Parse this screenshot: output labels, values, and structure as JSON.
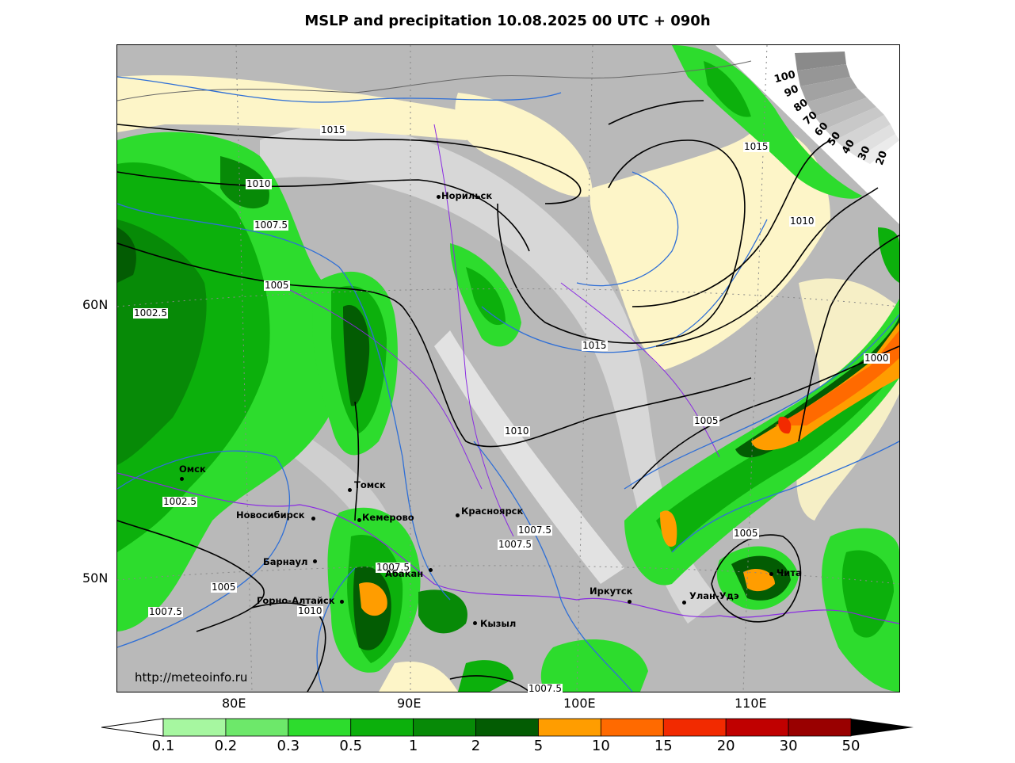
{
  "title": "MSLP and precipitation 10.08.2025 00 UTC + 090h",
  "watermark": "http://meteoinfo.ru",
  "lat_labels": [
    "60N",
    "50N"
  ],
  "lon_labels": [
    "80E",
    "90E",
    "100E",
    "110E"
  ],
  "cities": [
    "Норильск",
    "Омск",
    "Томск",
    "Новосибирск",
    "Кемерово",
    "Красноярск",
    "Барнаул",
    "Абакан",
    "Горно-Алтайск",
    "Кызыл",
    "Иркутск",
    "Улан-Удэ",
    "Чита"
  ],
  "isobar_labels": [
    "1015",
    "1010",
    "1007.5",
    "1005",
    "1002.5",
    "1015",
    "1010",
    "1000",
    "1015",
    "1010",
    "1005",
    "1007.5",
    "1007.5",
    "1002.5",
    "1005",
    "1007.5",
    "1010",
    "1005",
    "1007.5",
    "1007.5"
  ],
  "colorbar": {
    "ticks": [
      "0.1",
      "0.2",
      "0.3",
      "0.5",
      "1",
      "2",
      "5",
      "10",
      "15",
      "20",
      "30",
      "50"
    ],
    "colors": [
      "#a6f7a0",
      "#6de86a",
      "#2ddc2d",
      "#0cb00c",
      "#078a07",
      "#035c03",
      "#ff9d00",
      "#ff6a00",
      "#f22a00",
      "#c00000",
      "#990000"
    ]
  },
  "cloud_scale": [
    "100",
    "90",
    "80",
    "70",
    "60",
    "50",
    "40",
    "30",
    "20"
  ]
}
